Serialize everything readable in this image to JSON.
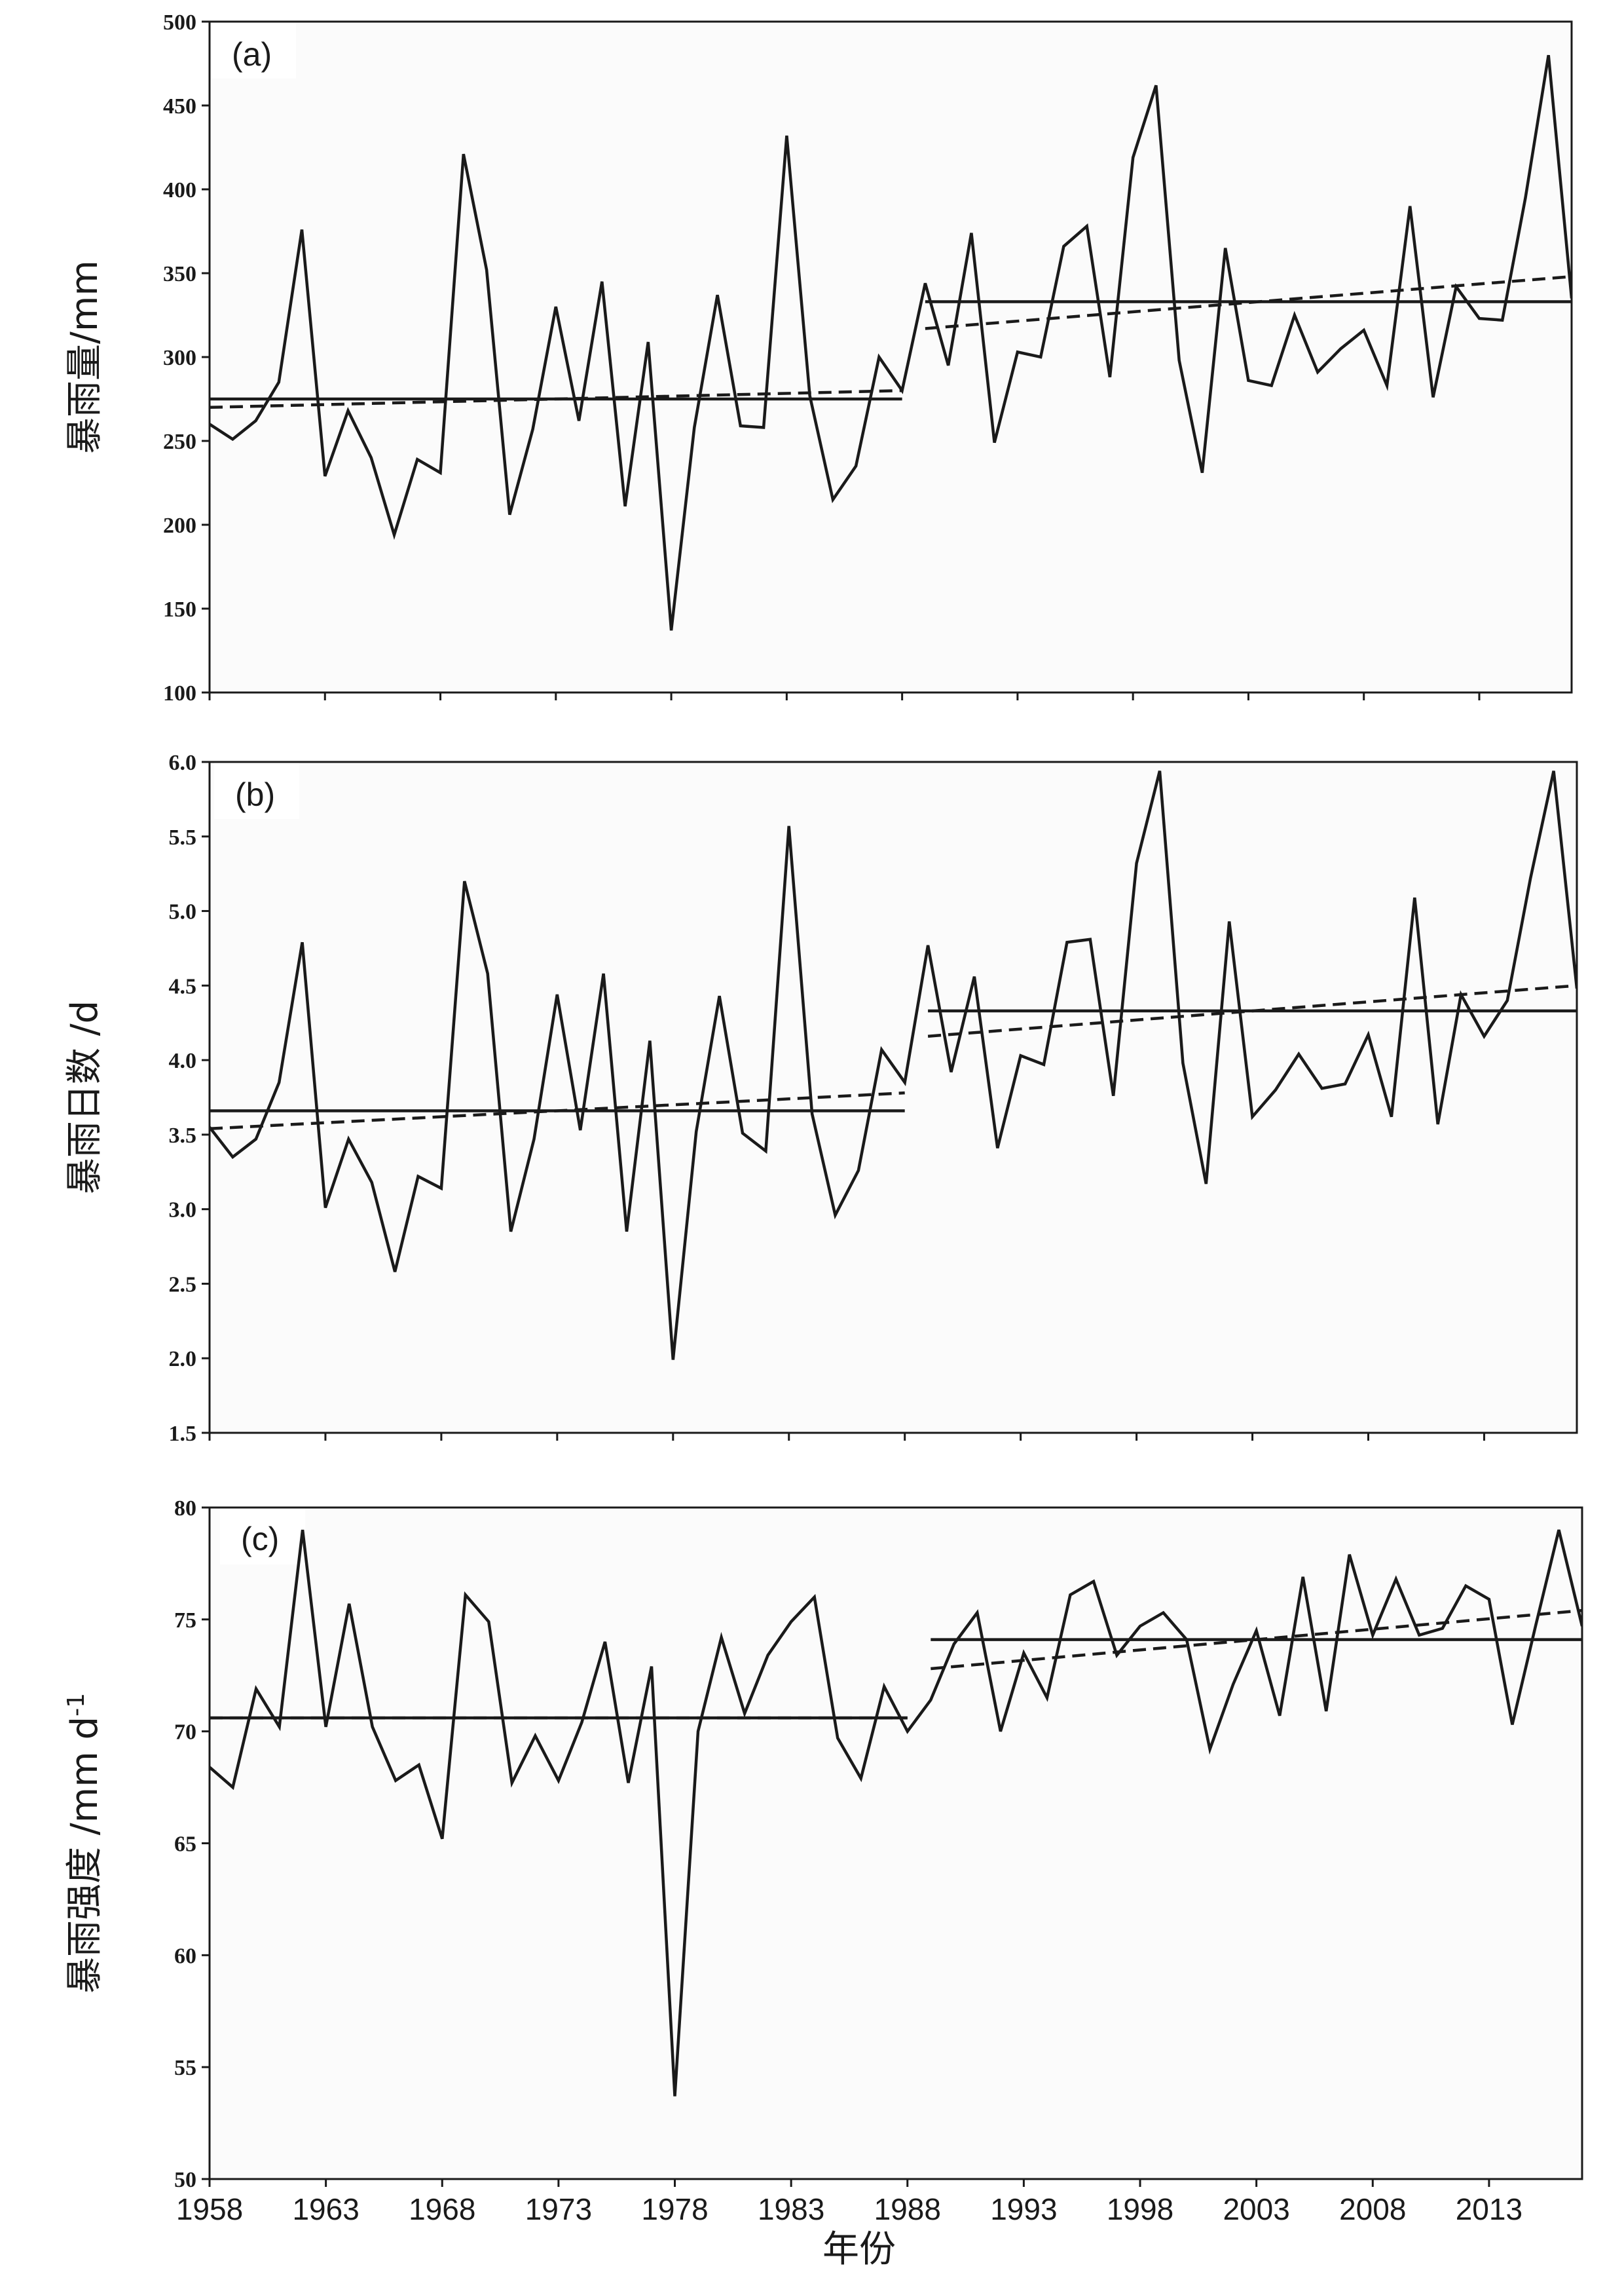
{
  "xlabel": "年份",
  "x_ticks": [
    1958,
    1963,
    1968,
    1973,
    1978,
    1983,
    1988,
    1993,
    1998,
    2003,
    2008,
    2013
  ],
  "chart_data": [
    {
      "type": "line",
      "panel": "(a)",
      "title": "",
      "ylabel": "暴雨量/mm",
      "ylim": [
        100,
        500
      ],
      "yticks": [
        100,
        150,
        200,
        250,
        300,
        350,
        400,
        450,
        500
      ],
      "xlim": [
        1958,
        2017
      ],
      "grid": false,
      "x": [
        1958,
        1959,
        1960,
        1961,
        1962,
        1963,
        1964,
        1965,
        1966,
        1967,
        1968,
        1969,
        1970,
        1971,
        1972,
        1973,
        1974,
        1975,
        1976,
        1977,
        1978,
        1979,
        1980,
        1981,
        1982,
        1983,
        1984,
        1985,
        1986,
        1987,
        1988,
        1989,
        1990,
        1991,
        1992,
        1993,
        1994,
        1995,
        1996,
        1997,
        1998,
        1999,
        2000,
        2001,
        2002,
        2003,
        2004,
        2005,
        2006,
        2007,
        2008,
        2009,
        2010,
        2011,
        2012,
        2013,
        2014,
        2015,
        2016,
        2017
      ],
      "series": [
        {
          "values": [
            260,
            251,
            262,
            285,
            376,
            229,
            268,
            240,
            194,
            239,
            231,
            421,
            352,
            206,
            257,
            330,
            262,
            345,
            211,
            309,
            137,
            258,
            337,
            259,
            258,
            432,
            277,
            215,
            235,
            300,
            280,
            344,
            295,
            374,
            249,
            303,
            300,
            366,
            378,
            288,
            419,
            462,
            298,
            231,
            365,
            286,
            283,
            325,
            291,
            305,
            316,
            283,
            390,
            276,
            342,
            323,
            322,
            395,
            480,
            335
          ]
        }
      ],
      "reference_lines": [
        {
          "style": "solid",
          "x": [
            1958,
            1988
          ],
          "y": [
            275,
            275
          ]
        },
        {
          "style": "dashed",
          "x": [
            1958,
            1988
          ],
          "y": [
            270,
            280
          ]
        },
        {
          "style": "solid",
          "x": [
            1989,
            2017
          ],
          "y": [
            333,
            333
          ]
        },
        {
          "style": "dashed",
          "x": [
            1989,
            2017
          ],
          "y": [
            317,
            348
          ]
        }
      ]
    },
    {
      "type": "line",
      "panel": "(b)",
      "title": "",
      "ylabel": "暴雨日数 /d",
      "ylim": [
        1.5,
        6.0
      ],
      "yticks": [
        "1.5",
        "2.0",
        "2.5",
        "3.0",
        "3.5",
        "4.0",
        "4.5",
        "5.0",
        "5.5",
        "6.0"
      ],
      "xlim": [
        1958,
        2017
      ],
      "grid": false,
      "x": [
        1958,
        1959,
        1960,
        1961,
        1962,
        1963,
        1964,
        1965,
        1966,
        1967,
        1968,
        1969,
        1970,
        1971,
        1972,
        1973,
        1974,
        1975,
        1976,
        1977,
        1978,
        1979,
        1980,
        1981,
        1982,
        1983,
        1984,
        1985,
        1986,
        1987,
        1988,
        1989,
        1990,
        1991,
        1992,
        1993,
        1994,
        1995,
        1996,
        1997,
        1998,
        1999,
        2000,
        2001,
        2002,
        2003,
        2004,
        2005,
        2006,
        2007,
        2008,
        2009,
        2010,
        2011,
        2012,
        2013,
        2014,
        2015,
        2016,
        2017
      ],
      "series": [
        {
          "values": [
            3.55,
            3.35,
            3.47,
            3.85,
            4.79,
            3.01,
            3.47,
            3.18,
            2.58,
            3.22,
            3.14,
            5.2,
            4.58,
            2.85,
            3.47,
            4.44,
            3.53,
            4.58,
            2.85,
            4.13,
            1.99,
            3.52,
            4.43,
            3.51,
            3.39,
            5.57,
            3.64,
            2.96,
            3.26,
            4.07,
            3.85,
            4.77,
            3.92,
            4.56,
            3.41,
            4.03,
            3.97,
            4.79,
            4.81,
            3.76,
            5.32,
            5.94,
            3.98,
            3.17,
            4.93,
            3.62,
            3.8,
            4.04,
            3.81,
            3.84,
            4.17,
            3.62,
            5.09,
            3.57,
            4.44,
            4.16,
            4.4,
            5.22,
            5.94,
            4.48
          ]
        }
      ],
      "reference_lines": [
        {
          "style": "solid",
          "x": [
            1958,
            1988
          ],
          "y": [
            3.66,
            3.66
          ]
        },
        {
          "style": "dashed",
          "x": [
            1958,
            1988
          ],
          "y": [
            3.54,
            3.78
          ]
        },
        {
          "style": "solid",
          "x": [
            1989,
            2017
          ],
          "y": [
            4.33,
            4.33
          ]
        },
        {
          "style": "dashed",
          "x": [
            1989,
            2017
          ],
          "y": [
            4.16,
            4.5
          ]
        }
      ]
    },
    {
      "type": "line",
      "panel": "(c)",
      "title": "",
      "ylabel": "暴雨强度 /mm d",
      "ylabel_superscript": "-1",
      "ylim": [
        50,
        80
      ],
      "yticks": [
        50,
        55,
        60,
        65,
        70,
        75,
        80
      ],
      "xlim": [
        1958,
        2017
      ],
      "grid": false,
      "x": [
        1958,
        1959,
        1960,
        1961,
        1962,
        1963,
        1964,
        1965,
        1966,
        1967,
        1968,
        1969,
        1970,
        1971,
        1972,
        1973,
        1974,
        1975,
        1976,
        1977,
        1978,
        1979,
        1980,
        1981,
        1982,
        1983,
        1984,
        1985,
        1986,
        1987,
        1988,
        1989,
        1990,
        1991,
        1992,
        1993,
        1994,
        1995,
        1996,
        1997,
        1998,
        1999,
        2000,
        2001,
        2002,
        2003,
        2004,
        2005,
        2006,
        2007,
        2008,
        2009,
        2010,
        2011,
        2012,
        2013,
        2014,
        2015,
        2016,
        2017
      ],
      "series": [
        {
          "values": [
            68.4,
            67.5,
            71.9,
            70.2,
            79.0,
            70.2,
            75.7,
            70.2,
            67.8,
            68.5,
            65.2,
            76.1,
            74.9,
            67.7,
            69.8,
            67.8,
            70.4,
            74.0,
            67.7,
            72.9,
            53.7,
            70.0,
            74.2,
            70.8,
            73.4,
            74.9,
            76.0,
            69.7,
            67.9,
            72.0,
            70.0,
            71.4,
            73.9,
            75.3,
            70.0,
            73.5,
            71.5,
            76.1,
            76.7,
            73.4,
            74.7,
            75.3,
            74.1,
            69.2,
            72.1,
            74.5,
            70.7,
            76.9,
            70.9,
            77.9,
            74.3,
            76.8,
            74.3,
            74.6,
            76.5,
            75.9,
            70.3,
            74.7,
            79.0,
            74.7
          ]
        }
      ],
      "reference_lines": [
        {
          "style": "solid",
          "x": [
            1958,
            1988
          ],
          "y": [
            70.6,
            70.6
          ]
        },
        {
          "style": "dashed",
          "x": [
            1958,
            1988
          ],
          "y": [
            70.6,
            70.6
          ]
        },
        {
          "style": "solid",
          "x": [
            1989,
            2017
          ],
          "y": [
            74.1,
            74.1
          ]
        },
        {
          "style": "dashed",
          "x": [
            1989,
            2017
          ],
          "y": [
            72.8,
            75.4
          ]
        }
      ]
    }
  ]
}
